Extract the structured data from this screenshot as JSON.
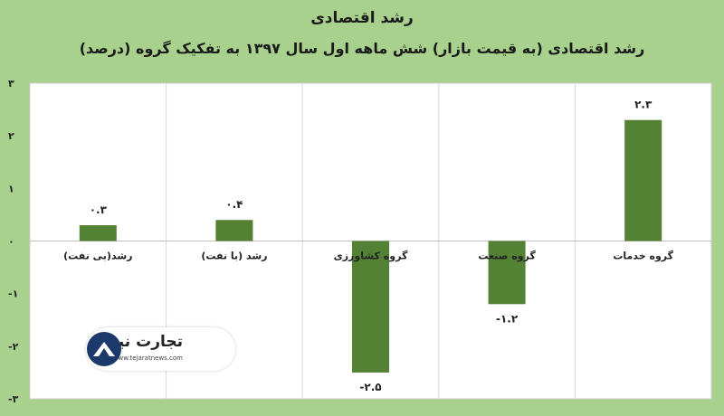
{
  "chart_data": {
    "type": "bar",
    "title": "رشد اقتصادی",
    "subtitle": "رشد اقتصادی (به قیمت بازار) شش ماهه اول سال ۱۳۹۷ به تفکیک گروه (درصد)",
    "categories": [
      "رشد(بی نفت)",
      "رشد (با نفت)",
      "گروه کشاورزی",
      "گروه صنعت",
      "گروه خدمات"
    ],
    "values": [
      0.3,
      0.4,
      -2.5,
      -1.2,
      2.3
    ],
    "data_labels": [
      "۰.۳",
      "۰.۴",
      "-۲.۵",
      "-۱.۲",
      "۲.۳"
    ],
    "ylim": [
      -3,
      3
    ],
    "yticks": [
      {
        "v": 3,
        "label": "۳"
      },
      {
        "v": 2,
        "label": "۲"
      },
      {
        "v": 1,
        "label": "۱"
      },
      {
        "v": 0,
        "label": "۰"
      },
      {
        "v": -1,
        "label": "-۱"
      },
      {
        "v": -2,
        "label": "-۲"
      },
      {
        "v": -3,
        "label": "-۳"
      }
    ],
    "grid": true,
    "bar_color": "#548235",
    "background": "#a9d18e",
    "plot_background": "#ffffff"
  },
  "logo": {
    "name": "تجارت نیوز",
    "url": "www.tejaratnews.com"
  }
}
